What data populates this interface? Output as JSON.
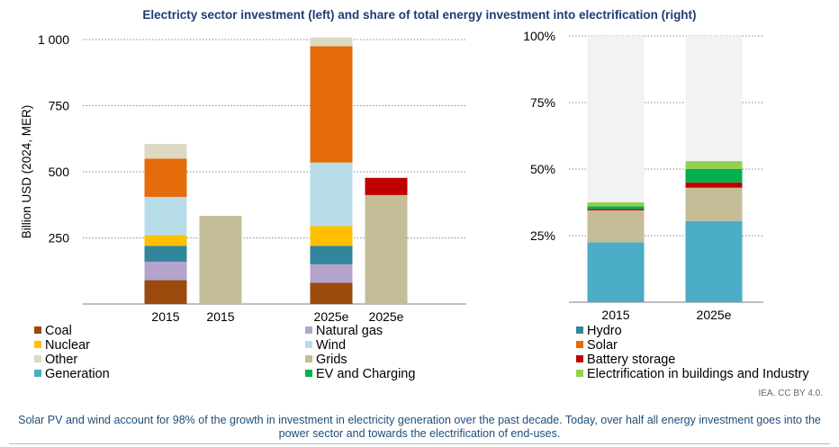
{
  "title": "Electricty sector investment (left) and share of total energy investment into electrification (right)",
  "credit": "IEA. CC BY 4.0.",
  "caption": "Solar PV and wind account for 98% of the growth in investment in electricity generation over the past decade. Today, over half all energy investment goes into the power sector and towards the electrification of end-uses.",
  "colors": {
    "Coal": "#9a4a0c",
    "Natural gas": "#b4a4cc",
    "Hydro": "#31859c",
    "Nuclear": "#ffc000",
    "Wind": "#b7dde8",
    "Solar": "#e46c0a",
    "Other": "#ddd9c3",
    "Grids": "#c4bd97",
    "Battery storage": "#c00000",
    "Generation": "#4bacc6",
    "EV and Charging": "#00b050",
    "Electrification in buildings and Industry": "#92d050",
    "Remainder": "#f2f2f2"
  },
  "legend": [
    "Coal",
    "Natural gas",
    "Hydro",
    "Nuclear",
    "Wind",
    "Solar",
    "Other",
    "Grids",
    "Battery storage",
    "Generation",
    "EV and Charging",
    "Electrification in buildings and Industry"
  ],
  "chart_data": [
    {
      "type": "bar",
      "stacked": true,
      "title": "",
      "ylabel": "Billion USD (2024, MER)",
      "ylim": [
        0,
        1000
      ],
      "yticks": [
        250,
        500,
        750,
        1000
      ],
      "ytick_labels": [
        "250",
        "500",
        "750",
        "1 000"
      ],
      "grid": true,
      "categories": [
        "2015",
        "2015",
        "2025e",
        "2025e"
      ],
      "series": [
        {
          "name": "Coal",
          "values": [
            90,
            0,
            80,
            0
          ]
        },
        {
          "name": "Natural gas",
          "values": [
            70,
            0,
            70,
            0
          ]
        },
        {
          "name": "Hydro",
          "values": [
            60,
            0,
            70,
            0
          ]
        },
        {
          "name": "Nuclear",
          "values": [
            40,
            0,
            75,
            0
          ]
        },
        {
          "name": "Wind",
          "values": [
            145,
            0,
            240,
            0
          ]
        },
        {
          "name": "Solar",
          "values": [
            145,
            0,
            440,
            0
          ]
        },
        {
          "name": "Other",
          "values": [
            55,
            0,
            33,
            0
          ]
        },
        {
          "name": "Grids",
          "values": [
            0,
            333,
            0,
            412
          ]
        },
        {
          "name": "Battery storage",
          "values": [
            0,
            0,
            0,
            65
          ]
        }
      ]
    },
    {
      "type": "bar",
      "stacked": true,
      "title": "",
      "ylabel": "",
      "ylim": [
        0,
        1
      ],
      "yticks": [
        0.25,
        0.5,
        0.75,
        1.0
      ],
      "ytick_labels": [
        "25%",
        "50%",
        "75%",
        "100%"
      ],
      "grid": true,
      "categories": [
        "2015",
        "2025e"
      ],
      "series": [
        {
          "name": "Generation",
          "values": [
            0.225,
            0.305
          ]
        },
        {
          "name": "Grids",
          "values": [
            0.12,
            0.125
          ]
        },
        {
          "name": "Battery storage",
          "values": [
            0.005,
            0.02
          ]
        },
        {
          "name": "EV and Charging",
          "values": [
            0.01,
            0.05
          ]
        },
        {
          "name": "Electrification in buildings and Industry",
          "values": [
            0.015,
            0.03
          ]
        },
        {
          "name": "Remainder",
          "values": [
            0.625,
            0.47
          ]
        }
      ]
    }
  ]
}
